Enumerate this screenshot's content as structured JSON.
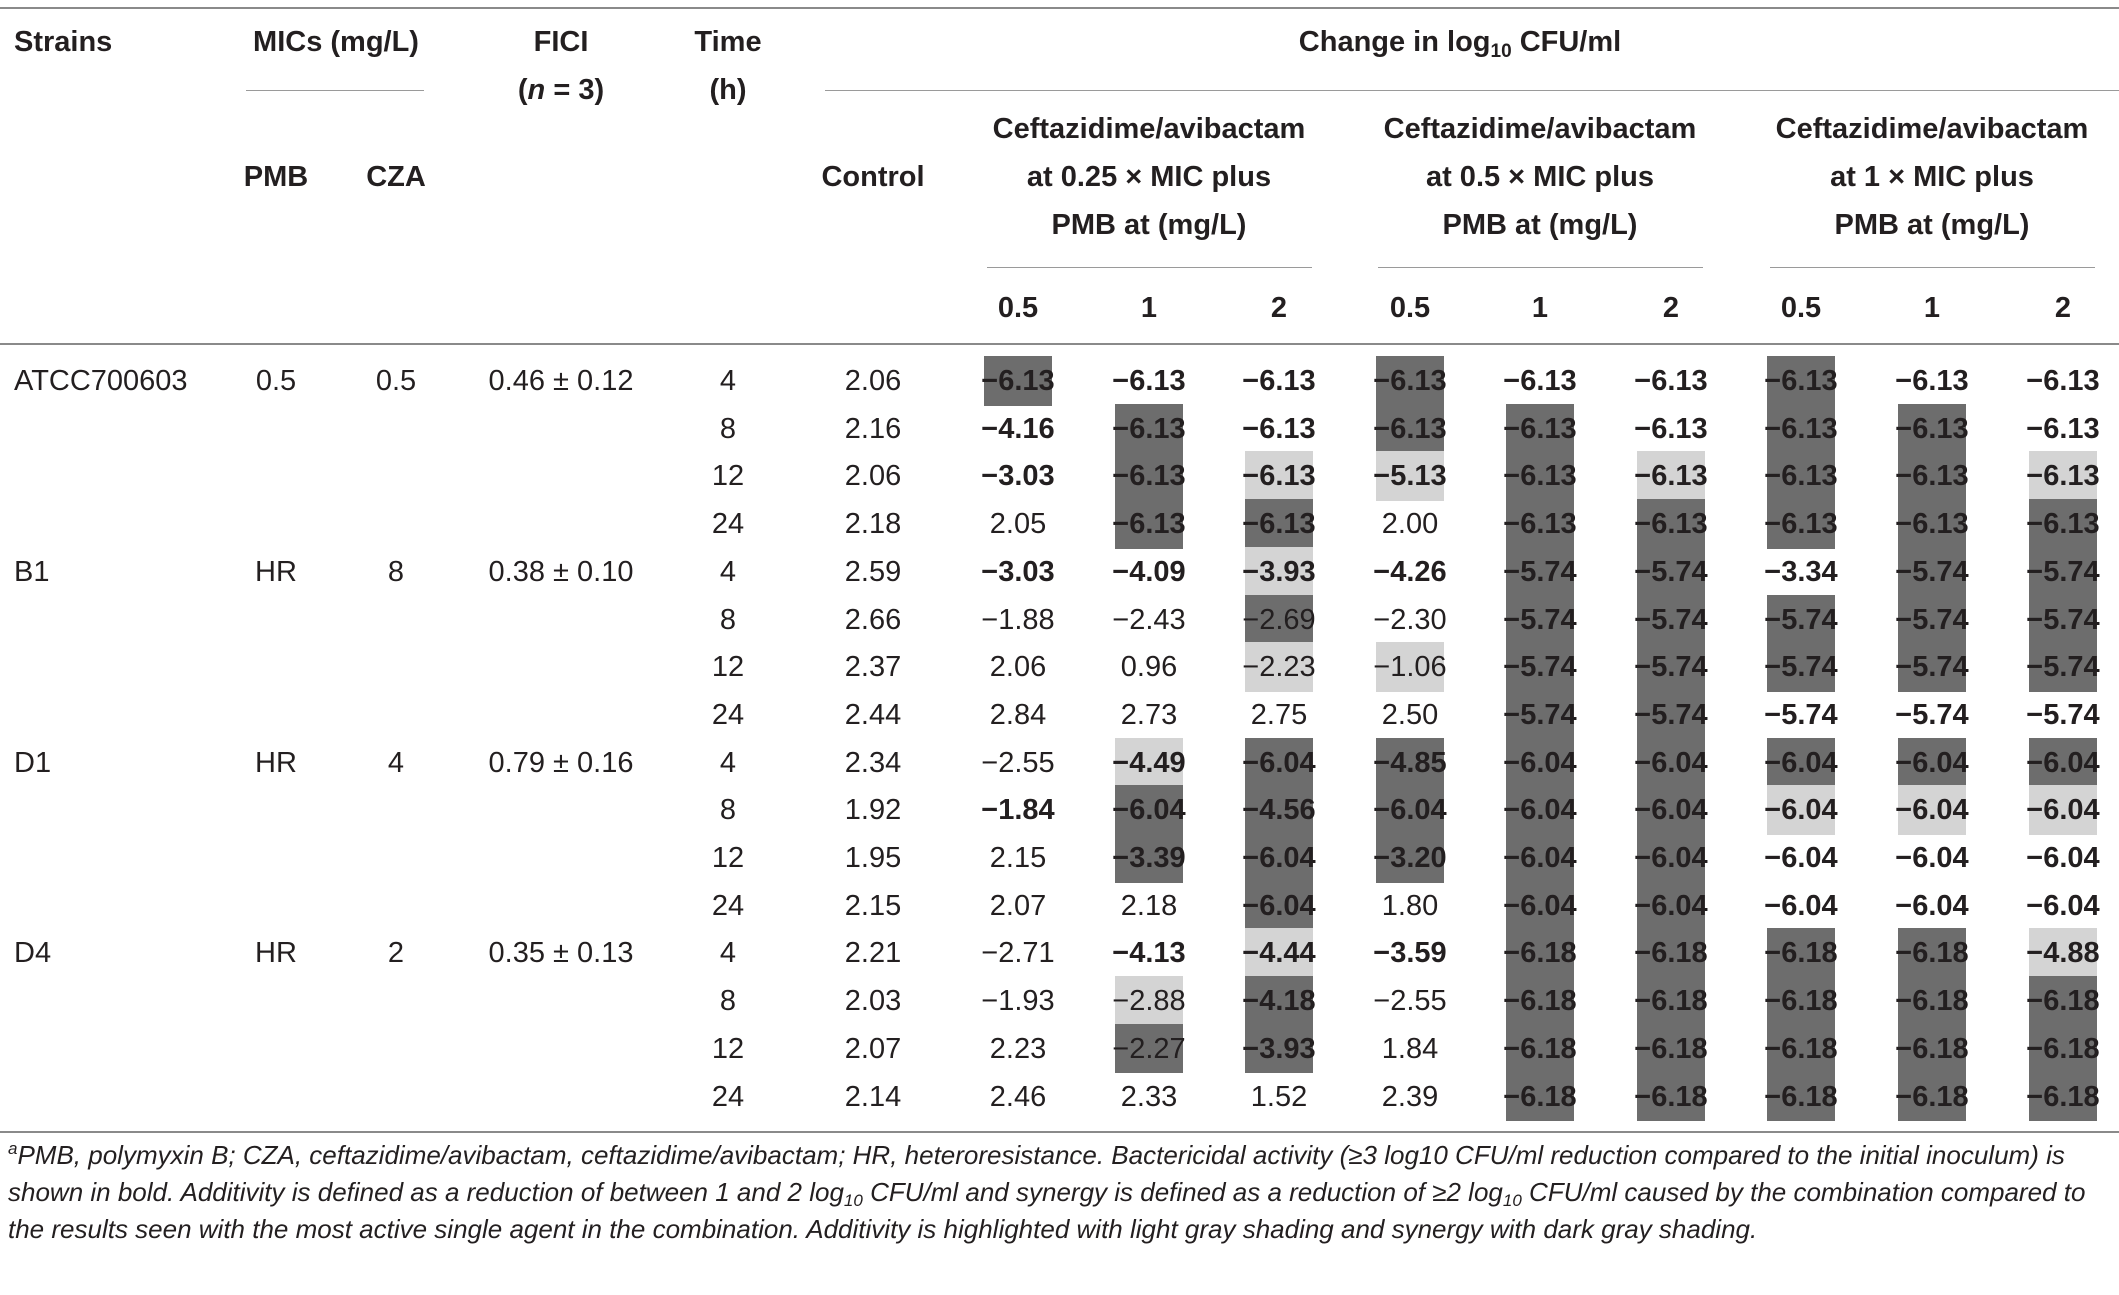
{
  "header": {
    "strains": "Strains",
    "mics": "MICs (mg/L)",
    "pmb": "PMB",
    "cza": "CZA",
    "fici": "FICI",
    "fici_n": "(n = 3)",
    "time": "Time",
    "time_unit": "(h)",
    "change_prefix": "Change in log",
    "change_sub": "10",
    "change_suffix": " CFU/ml",
    "control": "Control",
    "groups": [
      {
        "line1": "Ceftazidime/avibactam",
        "line2": "at 0.25 × MIC plus",
        "line3": "PMB at (mg/L)"
      },
      {
        "line1": "Ceftazidime/avibactam",
        "line2": "at 0.5 × MIC plus",
        "line3": "PMB at (mg/L)"
      },
      {
        "line1": "Ceftazidime/avibactam",
        "line2": "at 1 × MIC plus",
        "line3": "PMB at (mg/L)"
      }
    ],
    "doses": [
      "0.5",
      "1",
      "2",
      "0.5",
      "1",
      "2",
      "0.5",
      "1",
      "2"
    ]
  },
  "rows": [
    {
      "strain": "ATCC700603",
      "pmb": "0.5",
      "cza": "0.5",
      "fici": "0.46 ± 0.12",
      "time": "4",
      "control": "2.06",
      "v": [
        "−6.13",
        "−6.13",
        "−6.13",
        "−6.13",
        "−6.13",
        "−6.13",
        "−6.13",
        "−6.13",
        "−6.13"
      ],
      "s": [
        "S",
        "",
        "",
        "S",
        "",
        "",
        "S",
        "",
        ""
      ],
      "b": [
        1,
        1,
        1,
        1,
        1,
        1,
        1,
        1,
        1
      ]
    },
    {
      "strain": "",
      "pmb": "",
      "cza": "",
      "fici": "",
      "time": "8",
      "control": "2.16",
      "v": [
        "−4.16",
        "−6.13",
        "−6.13",
        "−6.13",
        "−6.13",
        "−6.13",
        "−6.13",
        "−6.13",
        "−6.13"
      ],
      "s": [
        "",
        "S",
        "",
        "S",
        "S",
        "",
        "S",
        "S",
        ""
      ],
      "b": [
        1,
        1,
        1,
        1,
        1,
        1,
        1,
        1,
        1
      ]
    },
    {
      "strain": "",
      "pmb": "",
      "cza": "",
      "fici": "",
      "time": "12",
      "control": "2.06",
      "v": [
        "−3.03",
        "−6.13",
        "−6.13",
        "−5.13",
        "−6.13",
        "−6.13",
        "−6.13",
        "−6.13",
        "−6.13"
      ],
      "s": [
        "",
        "S",
        "A",
        "A",
        "S",
        "A",
        "S",
        "S",
        "A"
      ],
      "b": [
        1,
        1,
        1,
        1,
        1,
        1,
        1,
        1,
        1
      ]
    },
    {
      "strain": "",
      "pmb": "",
      "cza": "",
      "fici": "",
      "time": "24",
      "control": "2.18",
      "v": [
        "2.05",
        "−6.13",
        "−6.13",
        "2.00",
        "−6.13",
        "−6.13",
        "−6.13",
        "−6.13",
        "−6.13"
      ],
      "s": [
        "",
        "S",
        "S",
        "",
        "S",
        "S",
        "S",
        "S",
        "S"
      ],
      "b": [
        0,
        1,
        1,
        0,
        1,
        1,
        1,
        1,
        1
      ]
    },
    {
      "strain": "B1",
      "pmb": "HR",
      "cza": "8",
      "fici": "0.38 ± 0.10",
      "time": "4",
      "control": "2.59",
      "v": [
        "−3.03",
        "−4.09",
        "−3.93",
        "−4.26",
        "−5.74",
        "−5.74",
        "−3.34",
        "−5.74",
        "−5.74"
      ],
      "s": [
        "",
        "",
        "A",
        "",
        "S",
        "S",
        "",
        "S",
        "S"
      ],
      "b": [
        1,
        1,
        1,
        1,
        1,
        1,
        1,
        1,
        1
      ]
    },
    {
      "strain": "",
      "pmb": "",
      "cza": "",
      "fici": "",
      "time": "8",
      "control": "2.66",
      "v": [
        "−1.88",
        "−2.43",
        "−2.69",
        "−2.30",
        "−5.74",
        "−5.74",
        "−5.74",
        "−5.74",
        "−5.74"
      ],
      "s": [
        "",
        "",
        "S",
        "",
        "S",
        "S",
        "S",
        "S",
        "S"
      ],
      "b": [
        0,
        0,
        0,
        0,
        1,
        1,
        1,
        1,
        1
      ]
    },
    {
      "strain": "",
      "pmb": "",
      "cza": "",
      "fici": "",
      "time": "12",
      "control": "2.37",
      "v": [
        "2.06",
        "0.96",
        "−2.23",
        "−1.06",
        "−5.74",
        "−5.74",
        "−5.74",
        "−5.74",
        "−5.74"
      ],
      "s": [
        "",
        "",
        "A",
        "A",
        "S",
        "S",
        "S",
        "S",
        "S"
      ],
      "b": [
        0,
        0,
        0,
        0,
        1,
        1,
        1,
        1,
        1
      ]
    },
    {
      "strain": "",
      "pmb": "",
      "cza": "",
      "fici": "",
      "time": "24",
      "control": "2.44",
      "v": [
        "2.84",
        "2.73",
        "2.75",
        "2.50",
        "−5.74",
        "−5.74",
        "−5.74",
        "−5.74",
        "−5.74"
      ],
      "s": [
        "",
        "",
        "",
        "",
        "S",
        "S",
        "",
        "",
        ""
      ],
      "b": [
        0,
        0,
        0,
        0,
        1,
        1,
        1,
        1,
        1
      ]
    },
    {
      "strain": "D1",
      "pmb": "HR",
      "cza": "4",
      "fici": "0.79 ± 0.16",
      "time": "4",
      "control": "2.34",
      "v": [
        "−2.55",
        "−4.49",
        "−6.04",
        "−4.85",
        "−6.04",
        "−6.04",
        "−6.04",
        "−6.04",
        "−6.04"
      ],
      "s": [
        "",
        "A",
        "S",
        "S",
        "S",
        "S",
        "S",
        "S",
        "S"
      ],
      "b": [
        0,
        1,
        1,
        1,
        1,
        1,
        1,
        1,
        1
      ]
    },
    {
      "strain": "",
      "pmb": "",
      "cza": "",
      "fici": "",
      "time": "8",
      "control": "1.92",
      "v": [
        "−1.84",
        "−6.04",
        "−4.56",
        "−6.04",
        "−6.04",
        "−6.04",
        "−6.04",
        "−6.04",
        "−6.04"
      ],
      "s": [
        "",
        "S",
        "S",
        "S",
        "S",
        "S",
        "A",
        "A",
        "A"
      ],
      "b": [
        1,
        1,
        1,
        1,
        1,
        1,
        1,
        1,
        1
      ]
    },
    {
      "strain": "",
      "pmb": "",
      "cza": "",
      "fici": "",
      "time": "12",
      "control": "1.95",
      "v": [
        "2.15",
        "−3.39",
        "−6.04",
        "−3.20",
        "−6.04",
        "−6.04",
        "−6.04",
        "−6.04",
        "−6.04"
      ],
      "s": [
        "",
        "S",
        "S",
        "S",
        "S",
        "S",
        "",
        "",
        ""
      ],
      "b": [
        0,
        1,
        1,
        1,
        1,
        1,
        1,
        1,
        1
      ]
    },
    {
      "strain": "",
      "pmb": "",
      "cza": "",
      "fici": "",
      "time": "24",
      "control": "2.15",
      "v": [
        "2.07",
        "2.18",
        "−6.04",
        "1.80",
        "−6.04",
        "−6.04",
        "−6.04",
        "−6.04",
        "−6.04"
      ],
      "s": [
        "",
        "",
        "S",
        "",
        "S",
        "S",
        "",
        "",
        ""
      ],
      "b": [
        0,
        0,
        1,
        0,
        1,
        1,
        1,
        1,
        1
      ]
    },
    {
      "strain": "D4",
      "pmb": "HR",
      "cza": "2",
      "fici": "0.35 ± 0.13",
      "time": "4",
      "control": "2.21",
      "v": [
        "−2.71",
        "−4.13",
        "−4.44",
        "−3.59",
        "−6.18",
        "−6.18",
        "−6.18",
        "−6.18",
        "−4.88"
      ],
      "s": [
        "",
        "",
        "A",
        "",
        "S",
        "S",
        "S",
        "S",
        "A"
      ],
      "b": [
        0,
        1,
        1,
        1,
        1,
        1,
        1,
        1,
        1
      ]
    },
    {
      "strain": "",
      "pmb": "",
      "cza": "",
      "fici": "",
      "time": "8",
      "control": "2.03",
      "v": [
        "−1.93",
        "−2.88",
        "−4.18",
        "−2.55",
        "−6.18",
        "−6.18",
        "−6.18",
        "−6.18",
        "−6.18"
      ],
      "s": [
        "",
        "A",
        "S",
        "",
        "S",
        "S",
        "S",
        "S",
        "S"
      ],
      "b": [
        0,
        0,
        1,
        0,
        1,
        1,
        1,
        1,
        1
      ]
    },
    {
      "strain": "",
      "pmb": "",
      "cza": "",
      "fici": "",
      "time": "12",
      "control": "2.07",
      "v": [
        "2.23",
        "−2.27",
        "−3.93",
        "1.84",
        "−6.18",
        "−6.18",
        "−6.18",
        "−6.18",
        "−6.18"
      ],
      "s": [
        "",
        "S",
        "S",
        "",
        "S",
        "S",
        "S",
        "S",
        "S"
      ],
      "b": [
        0,
        0,
        1,
        0,
        1,
        1,
        1,
        1,
        1
      ]
    },
    {
      "strain": "",
      "pmb": "",
      "cza": "",
      "fici": "",
      "time": "24",
      "control": "2.14",
      "v": [
        "2.46",
        "2.33",
        "1.52",
        "2.39",
        "−6.18",
        "−6.18",
        "−6.18",
        "−6.18",
        "−6.18"
      ],
      "s": [
        "",
        "",
        "",
        "",
        "S",
        "S",
        "S",
        "S",
        "S"
      ],
      "b": [
        0,
        0,
        0,
        0,
        1,
        1,
        1,
        1,
        1
      ]
    }
  ],
  "footnote": {
    "marker": "a",
    "p1": "PMB, polymyxin B; CZA, ceftazidime/avibactam, ceftazidime/avibactam; HR, heteroresistance. Bactericidal activity (≥3 log10 CFU/ml reduction compared to the initial inoculum) is shown in bold. Additivity is defined as a reduction of between 1 and 2 log",
    "sub1": "10",
    "p2": " CFU/ml and synergy is defined as a reduction of ≥2 log",
    "sub2": "10",
    "p3": " CFU/ml caused by the combination compared to the results seen with the most active single agent in the combination. Additivity is highlighted with light gray shading and synergy with dark gray shading."
  },
  "colors": {
    "synergy": "#6d6d6d",
    "additivity": "#d4d4d4",
    "rule": "#8a8a8a",
    "text": "#231f20"
  }
}
